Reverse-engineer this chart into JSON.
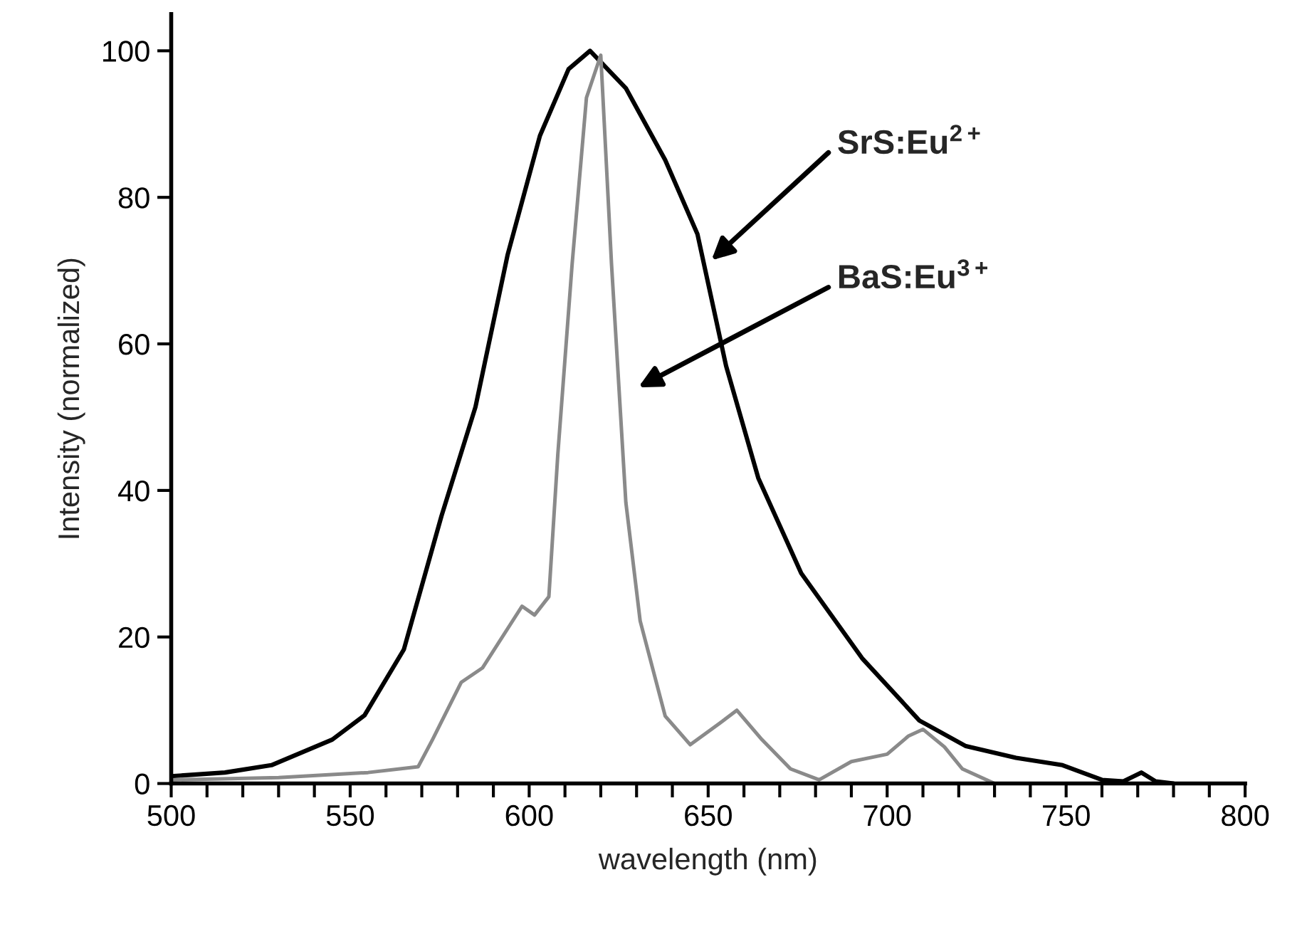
{
  "chart_data": {
    "type": "line",
    "xlabel": "wavelength (nm)",
    "ylabel": "Intensity (normalized)",
    "series": [
      {
        "color": "#000000",
        "x": [
          500,
          515,
          528,
          545,
          554,
          565,
          575.5,
          585,
          594,
          603,
          611,
          617,
          627,
          638,
          647,
          655,
          664,
          676,
          693,
          709,
          722,
          736,
          749,
          760,
          766,
          771,
          775,
          780
        ],
        "values": [
          1,
          1.5,
          2.5,
          6,
          9.3,
          18.3,
          36.5,
          51.4,
          72.2,
          88.4,
          97.5,
          100,
          94.9,
          85.1,
          75,
          57,
          41.7,
          28.7,
          17.1,
          8.6,
          5.1,
          3.5,
          2.5,
          0.5,
          0.3,
          1.5,
          0.3,
          0
        ]
      },
      {
        "color": "#8a8a8a",
        "x": [
          500,
          530,
          555,
          569,
          573,
          581,
          587,
          598,
          601.5,
          605.5,
          608,
          612,
          616,
          620,
          623,
          627,
          631,
          638,
          645,
          654,
          658,
          665,
          673,
          681,
          690,
          700,
          706,
          710,
          716,
          721,
          730,
          760,
          780
        ],
        "values": [
          0.5,
          0.8,
          1.5,
          2.3,
          6,
          13.8,
          15.8,
          24.2,
          23,
          25.5,
          44.9,
          70.9,
          93.6,
          99.4,
          70.9,
          38.4,
          22.2,
          9.2,
          5.3,
          8.5,
          10,
          6,
          2,
          0.5,
          3,
          4,
          6.5,
          7.4,
          5,
          2,
          0,
          0,
          0
        ]
      }
    ],
    "annotations": [
      "SrS:Eu$^{2+}$",
      "BaS:Eu$^{3+}$"
    ],
    "xlim": [
      500,
      800
    ],
    "ylim": [
      0,
      105
    ],
    "xticks": [
      500,
      {
        "value": 510,
        "label": null
      },
      {
        "value": 520,
        "label": null
      },
      {
        "value": 530,
        "label": null
      },
      {
        "value": 540,
        "label": null
      },
      550,
      {
        "value": 560,
        "label": null
      },
      {
        "value": 570,
        "label": null
      },
      {
        "value": 580,
        "label": null
      },
      {
        "value": 590,
        "label": null
      },
      600,
      {
        "value": 610,
        "label": null
      },
      {
        "value": 620,
        "label": null
      },
      {
        "value": 630,
        "label": null
      },
      {
        "value": 640,
        "label": null
      },
      650,
      {
        "value": 660,
        "label": null
      },
      {
        "value": 670,
        "label": null
      },
      {
        "value": 680,
        "label": null
      },
      {
        "value": 690,
        "label": null
      },
      700,
      {
        "value": 710,
        "label": null
      },
      {
        "value": 720,
        "label": null
      },
      {
        "value": 730,
        "label": null
      },
      {
        "value": 740,
        "label": null
      },
      750,
      {
        "value": 760,
        "label": null
      },
      {
        "value": 770,
        "label": null
      },
      {
        "value": 780,
        "label": null
      },
      {
        "value": 790,
        "label": null
      },
      800
    ],
    "yticks": [
      0,
      20,
      40,
      60,
      80,
      100
    ],
    "grid": false,
    "legend": false,
    "marker": "none",
    "line_style": "solid"
  }
}
